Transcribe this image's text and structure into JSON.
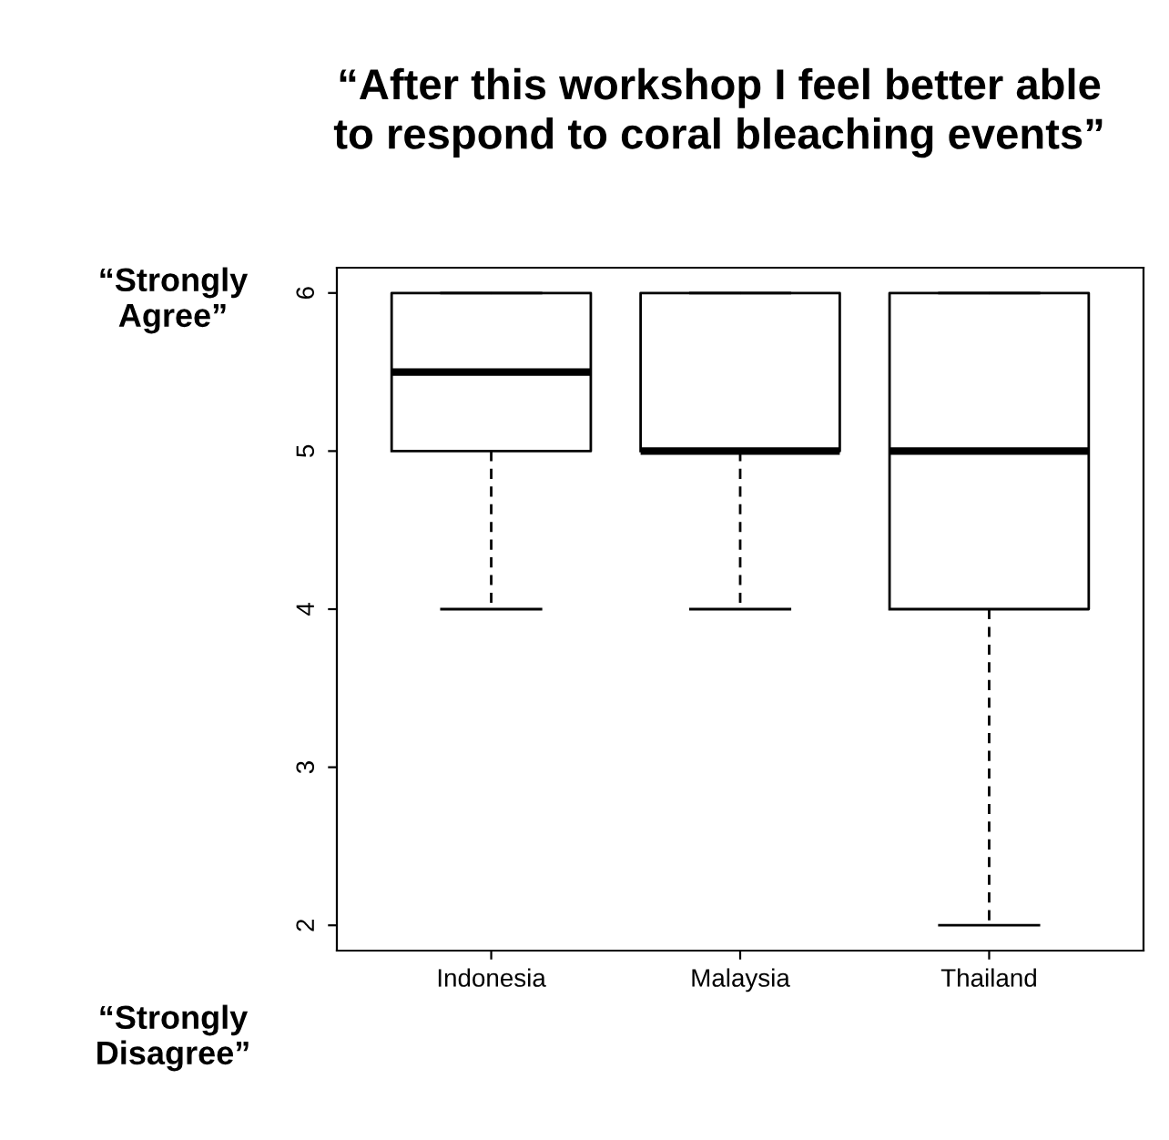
{
  "chart_data": {
    "type": "box",
    "title": "“After this workshop I feel better able\nto respond to coral bleaching events”",
    "categories": [
      "Indonesia",
      "Malaysia",
      "Thailand"
    ],
    "boxes": [
      {
        "low": 4,
        "q1": 5,
        "median": 5.5,
        "q3": 6,
        "high": 6
      },
      {
        "low": 4,
        "q1": 5,
        "median": 5,
        "q3": 6,
        "high": 6
      },
      {
        "low": 2,
        "q1": 4,
        "median": 5,
        "q3": 6,
        "high": 6
      }
    ],
    "ylim": [
      1.84,
      6.16
    ],
    "yticks": [
      2,
      3,
      4,
      5,
      6
    ],
    "grid": false,
    "legend": false,
    "annotations": [
      "“Strongly\nAgree”",
      "“Strongly\nDisagree”"
    ]
  }
}
